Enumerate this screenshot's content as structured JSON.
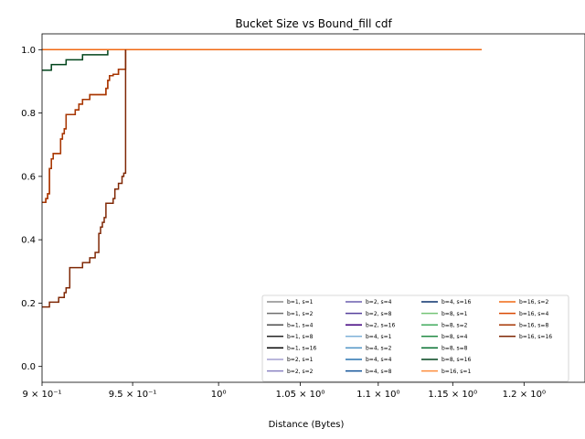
{
  "chart_data": {
    "type": "line",
    "title": "Bucket Size vs Bound_fill cdf",
    "xlabel": "Distance (Bytes)",
    "ylabel": "",
    "x_scale": "log",
    "xlim": [
      0.9,
      1.235
    ],
    "ylim": [
      -0.05,
      1.05
    ],
    "x_ticks": [
      {
        "value": 0.9,
        "label": "9 × 10⁻¹"
      },
      {
        "value": 0.95,
        "label": "9.5 × 10⁻¹"
      },
      {
        "value": 1.0,
        "label": "10⁰"
      },
      {
        "value": 1.05,
        "label": "1.05 × 10⁰"
      },
      {
        "value": 1.1,
        "label": "1.1 × 10⁰"
      },
      {
        "value": 1.15,
        "label": "1.15 × 10⁰"
      },
      {
        "value": 1.2,
        "label": "1.2 × 10⁰"
      }
    ],
    "y_ticks": [
      {
        "value": 0.0,
        "label": "0.0"
      },
      {
        "value": 0.2,
        "label": "0.2"
      },
      {
        "value": 0.4,
        "label": "0.4"
      },
      {
        "value": 0.6,
        "label": "0.6"
      },
      {
        "value": 0.8,
        "label": "0.8"
      },
      {
        "value": 1.0,
        "label": "1.0"
      }
    ],
    "grid": false,
    "legend_position": "lower-right",
    "legend_columns": 4,
    "series": [
      {
        "name": "b=1, s=1",
        "color": "#8c8c8c",
        "x": [
          0.9,
          1.17
        ],
        "y": [
          1.0,
          1.0
        ]
      },
      {
        "name": "b=1, s=2",
        "color": "#6e6e6e",
        "x": [
          0.9,
          1.17
        ],
        "y": [
          1.0,
          1.0
        ]
      },
      {
        "name": "b=1, s=4",
        "color": "#4d4d4d",
        "x": [
          0.9,
          1.17
        ],
        "y": [
          1.0,
          1.0
        ]
      },
      {
        "name": "b=1, s=8",
        "color": "#252525",
        "x": [
          0.9,
          1.17
        ],
        "y": [
          1.0,
          1.0
        ]
      },
      {
        "name": "b=1, s=16",
        "color": "#000000",
        "x": [
          0.9,
          1.17
        ],
        "y": [
          1.0,
          1.0
        ]
      },
      {
        "name": "b=2, s=1",
        "color": "#a49fd0",
        "x": [
          0.9,
          1.17
        ],
        "y": [
          1.0,
          1.0
        ]
      },
      {
        "name": "b=2, s=2",
        "color": "#8a83c2",
        "x": [
          0.9,
          1.17
        ],
        "y": [
          1.0,
          1.0
        ]
      },
      {
        "name": "b=2, s=4",
        "color": "#6a5fae",
        "x": [
          0.9,
          1.17
        ],
        "y": [
          1.0,
          1.0
        ]
      },
      {
        "name": "b=2, s=8",
        "color": "#553f9c",
        "x": [
          0.9,
          1.17
        ],
        "y": [
          1.0,
          1.0
        ]
      },
      {
        "name": "b=2, s=16",
        "color": "#3f007d",
        "x": [
          0.9,
          1.17
        ],
        "y": [
          1.0,
          1.0
        ]
      },
      {
        "name": "b=4, s=1",
        "color": "#7fb1d8",
        "x": [
          0.9,
          1.17
        ],
        "y": [
          1.0,
          1.0
        ]
      },
      {
        "name": "b=4, s=2",
        "color": "#4e93c5",
        "x": [
          0.9,
          1.17
        ],
        "y": [
          1.0,
          1.0
        ]
      },
      {
        "name": "b=4, s=4",
        "color": "#2a73b0",
        "x": [
          0.9,
          1.17
        ],
        "y": [
          1.0,
          1.0
        ]
      },
      {
        "name": "b=4, s=8",
        "color": "#13549a",
        "x": [
          0.9,
          1.17
        ],
        "y": [
          1.0,
          1.0
        ]
      },
      {
        "name": "b=4, s=16",
        "color": "#08306b",
        "x": [
          0.9,
          1.17
        ],
        "y": [
          1.0,
          1.0
        ]
      },
      {
        "name": "b=8, s=1",
        "color": "#74c476",
        "x": [
          0.9,
          1.17
        ],
        "y": [
          1.0,
          1.0
        ]
      },
      {
        "name": "b=8, s=2",
        "color": "#41ab5d",
        "x": [
          0.9,
          1.17
        ],
        "y": [
          1.0,
          1.0
        ]
      },
      {
        "name": "b=8, s=4",
        "color": "#238b45",
        "x": [
          0.9,
          1.17
        ],
        "y": [
          1.0,
          1.0
        ]
      },
      {
        "name": "b=8, s=8",
        "color": "#006d2c",
        "x": [
          0.9,
          1.17
        ],
        "y": [
          1.0,
          1.0
        ]
      },
      {
        "name": "b=8, s=16",
        "color": "#00441b",
        "x": [
          0.9,
          0.902,
          0.902,
          0.905,
          0.905,
          0.913,
          0.913,
          0.922,
          0.922,
          0.936,
          0.936,
          1.17
        ],
        "y": [
          0.935,
          0.935,
          0.935,
          0.935,
          0.953,
          0.953,
          0.968,
          0.968,
          0.984,
          0.984,
          1.0,
          1.0
        ]
      },
      {
        "name": "b=16, s=1",
        "color": "#fd8d3c",
        "x": [
          0.9,
          1.17
        ],
        "y": [
          1.0,
          1.0
        ]
      },
      {
        "name": "b=16, s=2",
        "color": "#f16913",
        "x": [
          0.9,
          1.17
        ],
        "y": [
          1.0,
          1.0
        ]
      },
      {
        "name": "b=16, s=4",
        "color": "#d94801",
        "x": [
          0.9,
          0.902,
          0.903,
          0.904,
          0.905,
          0.906,
          0.907,
          0.91,
          0.911,
          0.912,
          0.913,
          0.914,
          0.918,
          0.92,
          0.922,
          0.926,
          0.935,
          0.936,
          0.937,
          0.939,
          0.942,
          0.945
        ],
        "y": [
          0.518,
          0.53,
          0.545,
          0.625,
          0.655,
          0.672,
          0.672,
          0.718,
          0.735,
          0.75,
          0.795,
          0.795,
          0.81,
          0.828,
          0.843,
          0.858,
          0.878,
          0.903,
          0.918,
          0.922,
          0.938,
          0.938
        ]
      },
      {
        "name": "b=16, s=8",
        "color": "#a63603",
        "x": [
          0.9,
          0.902,
          0.903,
          0.904,
          0.905,
          0.906,
          0.907,
          0.91,
          0.911,
          0.912,
          0.913,
          0.914,
          0.918,
          0.92,
          0.922,
          0.926,
          0.935,
          0.936,
          0.937,
          0.939,
          0.942,
          0.945,
          0.946,
          0.946
        ],
        "y": [
          0.518,
          0.53,
          0.545,
          0.625,
          0.655,
          0.672,
          0.672,
          0.718,
          0.735,
          0.75,
          0.795,
          0.795,
          0.81,
          0.828,
          0.843,
          0.858,
          0.878,
          0.903,
          0.918,
          0.922,
          0.938,
          0.938,
          0.938,
          1.0
        ]
      },
      {
        "name": "b=16, s=16",
        "color": "#7f2704",
        "x": [
          0.9,
          0.902,
          0.904,
          0.909,
          0.911,
          0.912,
          0.913,
          0.915,
          0.918,
          0.922,
          0.926,
          0.929,
          0.931,
          0.932,
          0.933,
          0.934,
          0.935,
          0.936,
          0.939,
          0.94,
          0.942,
          0.944,
          0.945,
          0.946,
          0.946,
          0.946
        ],
        "y": [
          0.188,
          0.188,
          0.203,
          0.218,
          0.218,
          0.233,
          0.248,
          0.312,
          0.312,
          0.328,
          0.343,
          0.36,
          0.42,
          0.44,
          0.455,
          0.47,
          0.515,
          0.515,
          0.53,
          0.56,
          0.578,
          0.6,
          0.61,
          0.61,
          0.8,
          1.0
        ]
      }
    ]
  }
}
